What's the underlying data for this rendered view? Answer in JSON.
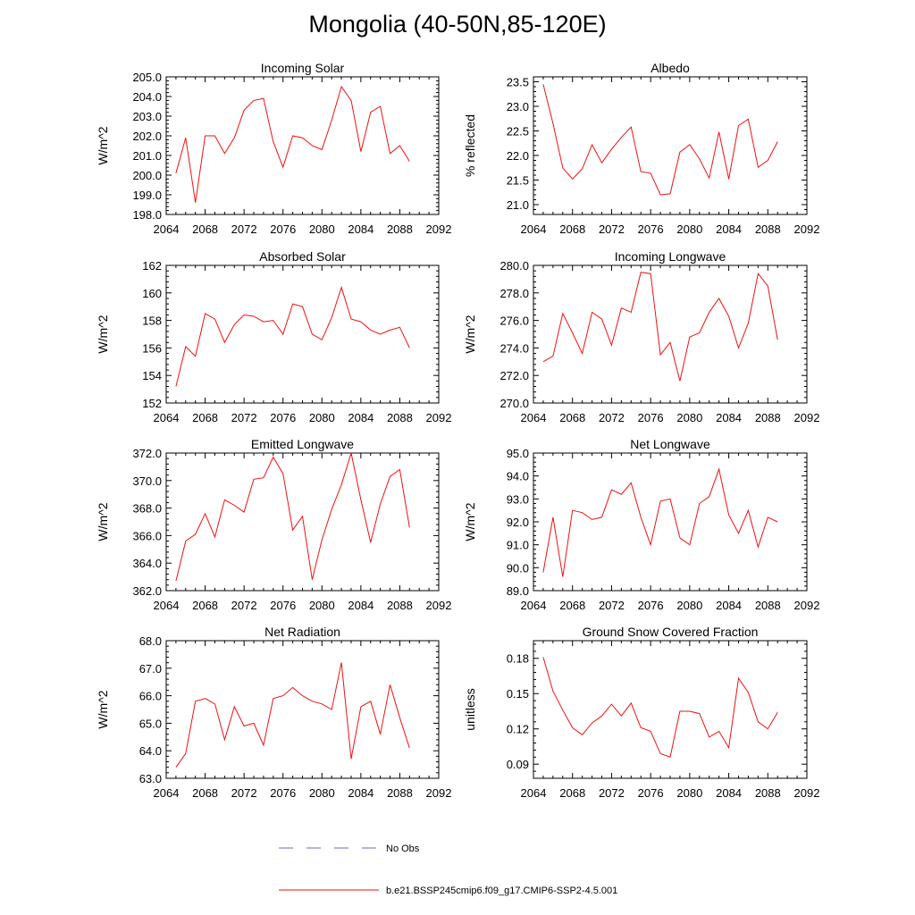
{
  "title": "Mongolia (40-50N,85-120E)",
  "legend": {
    "entries": [
      {
        "label": "No Obs",
        "color": "#6666cc",
        "style": "dashed"
      },
      {
        "label": "b.e21.BSSP245cmip6.f09_g17.CMIP6-SSP2-4.5.001",
        "color": "#ee1111",
        "style": "solid"
      }
    ]
  },
  "colors": {
    "series": "#ee1111",
    "axis": "#000000"
  },
  "chart_data": [
    {
      "type": "line",
      "title": "Incoming Solar",
      "ylabel": "W/m^2",
      "xlim": [
        2064,
        2092
      ],
      "ylim": [
        198,
        205
      ],
      "xticks": [
        2064,
        2068,
        2072,
        2076,
        2080,
        2084,
        2088,
        2092
      ],
      "xticklabels": [
        "2064",
        "2068",
        "2072",
        "2076",
        "2080",
        "2084",
        "2088",
        "2092"
      ],
      "yticks": [
        198,
        199,
        200,
        201,
        202,
        203,
        204,
        205
      ],
      "yticklabels": [
        "198.0",
        "199.0",
        "200.0",
        "201.0",
        "202.0",
        "203.0",
        "204.0",
        "205.0"
      ],
      "x": [
        2065,
        2066,
        2067,
        2068,
        2069,
        2070,
        2071,
        2072,
        2073,
        2074,
        2075,
        2076,
        2077,
        2078,
        2079,
        2080,
        2081,
        2082,
        2083,
        2084,
        2085,
        2086,
        2087,
        2088,
        2089
      ],
      "series": [
        {
          "values": [
            200.1,
            201.9,
            198.6,
            202.0,
            202.0,
            201.1,
            201.9,
            203.3,
            203.8,
            203.9,
            201.7,
            200.4,
            202.0,
            201.9,
            201.5,
            201.3,
            202.8,
            204.5,
            203.8,
            201.2,
            203.2,
            203.5,
            201.1,
            201.5,
            200.7
          ]
        }
      ]
    },
    {
      "type": "line",
      "title": "Albedo",
      "ylabel": "% reflected",
      "xlim": [
        2064,
        2092
      ],
      "ylim": [
        20.8,
        23.6
      ],
      "xticks": [
        2064,
        2068,
        2072,
        2076,
        2080,
        2084,
        2088,
        2092
      ],
      "xticklabels": [
        "2064",
        "2068",
        "2072",
        "2076",
        "2080",
        "2084",
        "2088",
        "2092"
      ],
      "yticks": [
        21.0,
        21.5,
        22.0,
        22.5,
        23.0,
        23.5
      ],
      "yticklabels": [
        "21.0",
        "21.5",
        "22.0",
        "22.5",
        "23.0",
        "23.5"
      ],
      "x": [
        2065,
        2066,
        2067,
        2068,
        2069,
        2070,
        2071,
        2072,
        2073,
        2074,
        2075,
        2076,
        2077,
        2078,
        2079,
        2080,
        2081,
        2082,
        2083,
        2084,
        2085,
        2086,
        2087,
        2088,
        2089
      ],
      "series": [
        {
          "values": [
            23.45,
            22.65,
            21.75,
            21.52,
            21.73,
            22.22,
            21.85,
            22.13,
            22.37,
            22.58,
            21.67,
            21.64,
            21.2,
            21.22,
            22.07,
            22.22,
            21.93,
            21.54,
            22.48,
            21.52,
            22.61,
            22.74,
            21.76,
            21.9,
            22.28
          ]
        }
      ]
    },
    {
      "type": "line",
      "title": "Absorbed Solar",
      "ylabel": "W/m^2",
      "xlim": [
        2064,
        2092
      ],
      "ylim": [
        152,
        162
      ],
      "xticks": [
        2064,
        2068,
        2072,
        2076,
        2080,
        2084,
        2088,
        2092
      ],
      "xticklabels": [
        "2064",
        "2068",
        "2072",
        "2076",
        "2080",
        "2084",
        "2088",
        "2092"
      ],
      "yticks": [
        152,
        154,
        156,
        158,
        160,
        162
      ],
      "yticklabels": [
        "152",
        "154",
        "156",
        "158",
        "160",
        "162"
      ],
      "x": [
        2065,
        2066,
        2067,
        2068,
        2069,
        2070,
        2071,
        2072,
        2073,
        2074,
        2075,
        2076,
        2077,
        2078,
        2079,
        2080,
        2081,
        2082,
        2083,
        2084,
        2085,
        2086,
        2087,
        2088,
        2089
      ],
      "series": [
        {
          "values": [
            153.2,
            156.1,
            155.4,
            158.5,
            158.1,
            156.4,
            157.7,
            158.4,
            158.3,
            157.9,
            158.0,
            157.0,
            159.2,
            159.0,
            157.0,
            156.6,
            158.2,
            160.4,
            158.1,
            157.9,
            157.3,
            157.0,
            157.3,
            157.5,
            156.0
          ]
        }
      ]
    },
    {
      "type": "line",
      "title": "Incoming Longwave",
      "ylabel": "W/m^2",
      "xlim": [
        2064,
        2092
      ],
      "ylim": [
        270,
        280
      ],
      "xticks": [
        2064,
        2068,
        2072,
        2076,
        2080,
        2084,
        2088,
        2092
      ],
      "xticklabels": [
        "2064",
        "2068",
        "2072",
        "2076",
        "2080",
        "2084",
        "2088",
        "2092"
      ],
      "yticks": [
        270,
        272,
        274,
        276,
        278,
        280
      ],
      "yticklabels": [
        "270.0",
        "272.0",
        "274.0",
        "276.0",
        "278.0",
        "280.0"
      ],
      "x": [
        2065,
        2066,
        2067,
        2068,
        2069,
        2070,
        2071,
        2072,
        2073,
        2074,
        2075,
        2076,
        2077,
        2078,
        2079,
        2080,
        2081,
        2082,
        2083,
        2084,
        2085,
        2086,
        2087,
        2088,
        2089
      ],
      "series": [
        {
          "values": [
            273.0,
            273.4,
            276.5,
            275.1,
            273.6,
            276.6,
            276.1,
            274.2,
            276.9,
            276.6,
            279.5,
            279.4,
            273.5,
            274.4,
            271.6,
            274.8,
            275.1,
            276.6,
            277.6,
            276.3,
            274.0,
            275.8,
            279.4,
            278.5,
            274.6
          ]
        }
      ]
    },
    {
      "type": "line",
      "title": "Emitted Longwave",
      "ylabel": "W/m^2",
      "xlim": [
        2064,
        2092
      ],
      "ylim": [
        362,
        372
      ],
      "xticks": [
        2064,
        2068,
        2072,
        2076,
        2080,
        2084,
        2088,
        2092
      ],
      "xticklabels": [
        "2064",
        "2068",
        "2072",
        "2076",
        "2080",
        "2084",
        "2088",
        "2092"
      ],
      "yticks": [
        362,
        364,
        366,
        368,
        370,
        372
      ],
      "yticklabels": [
        "362.0",
        "364.0",
        "366.0",
        "368.0",
        "370.0",
        "372.0"
      ],
      "x": [
        2065,
        2066,
        2067,
        2068,
        2069,
        2070,
        2071,
        2072,
        2073,
        2074,
        2075,
        2076,
        2077,
        2078,
        2079,
        2080,
        2081,
        2082,
        2083,
        2084,
        2085,
        2086,
        2087,
        2088,
        2089
      ],
      "series": [
        {
          "values": [
            362.7,
            365.6,
            366.1,
            367.6,
            365.9,
            368.6,
            368.2,
            367.7,
            370.1,
            370.2,
            371.7,
            370.5,
            366.4,
            367.4,
            362.8,
            365.7,
            367.9,
            369.7,
            372.0,
            368.6,
            365.5,
            368.3,
            370.3,
            370.8,
            366.6
          ]
        }
      ]
    },
    {
      "type": "line",
      "title": "Net Longwave",
      "ylabel": "W/m^2",
      "xlim": [
        2064,
        2092
      ],
      "ylim": [
        89,
        95
      ],
      "xticks": [
        2064,
        2068,
        2072,
        2076,
        2080,
        2084,
        2088,
        2092
      ],
      "xticklabels": [
        "2064",
        "2068",
        "2072",
        "2076",
        "2080",
        "2084",
        "2088",
        "2092"
      ],
      "yticks": [
        89,
        90,
        91,
        92,
        93,
        94,
        95
      ],
      "yticklabels": [
        "89.0",
        "90.0",
        "91.0",
        "92.0",
        "93.0",
        "94.0",
        "95.0"
      ],
      "x": [
        2065,
        2066,
        2067,
        2068,
        2069,
        2070,
        2071,
        2072,
        2073,
        2074,
        2075,
        2076,
        2077,
        2078,
        2079,
        2080,
        2081,
        2082,
        2083,
        2084,
        2085,
        2086,
        2087,
        2088,
        2089
      ],
      "series": [
        {
          "values": [
            89.8,
            92.2,
            89.6,
            92.5,
            92.4,
            92.1,
            92.2,
            93.4,
            93.2,
            93.7,
            92.2,
            91.0,
            92.9,
            93.0,
            91.3,
            91.0,
            92.8,
            93.1,
            94.3,
            92.3,
            91.5,
            92.5,
            90.9,
            92.2,
            92.0
          ]
        }
      ]
    },
    {
      "type": "line",
      "title": "Net Radiation",
      "ylabel": "W/m^2",
      "xlim": [
        2064,
        2092
      ],
      "ylim": [
        63,
        68
      ],
      "xticks": [
        2064,
        2068,
        2072,
        2076,
        2080,
        2084,
        2088,
        2092
      ],
      "xticklabels": [
        "2064",
        "2068",
        "2072",
        "2076",
        "2080",
        "2084",
        "2088",
        "2092"
      ],
      "yticks": [
        63,
        64,
        65,
        66,
        67,
        68
      ],
      "yticklabels": [
        "63.0",
        "64.0",
        "65.0",
        "66.0",
        "67.0",
        "68.0"
      ],
      "x": [
        2065,
        2066,
        2067,
        2068,
        2069,
        2070,
        2071,
        2072,
        2073,
        2074,
        2075,
        2076,
        2077,
        2078,
        2079,
        2080,
        2081,
        2082,
        2083,
        2084,
        2085,
        2086,
        2087,
        2088,
        2089
      ],
      "series": [
        {
          "values": [
            63.4,
            63.9,
            65.8,
            65.9,
            65.7,
            64.4,
            65.6,
            64.9,
            65.0,
            64.2,
            65.9,
            66.0,
            66.3,
            66.0,
            65.8,
            65.7,
            65.5,
            67.2,
            63.7,
            65.6,
            65.8,
            64.6,
            66.4,
            65.2,
            64.1
          ]
        }
      ]
    },
    {
      "type": "line",
      "title": "Ground Snow Covered Fraction",
      "ylabel": "unitless",
      "xlim": [
        2064,
        2092
      ],
      "ylim": [
        0.078,
        0.195
      ],
      "xticks": [
        2064,
        2068,
        2072,
        2076,
        2080,
        2084,
        2088,
        2092
      ],
      "xticklabels": [
        "2064",
        "2068",
        "2072",
        "2076",
        "2080",
        "2084",
        "2088",
        "2092"
      ],
      "yticks": [
        0.09,
        0.12,
        0.15,
        0.18
      ],
      "yticklabels": [
        "0.09",
        "0.12",
        "0.15",
        "0.18"
      ],
      "x": [
        2065,
        2066,
        2067,
        2068,
        2069,
        2070,
        2071,
        2072,
        2073,
        2074,
        2075,
        2076,
        2077,
        2078,
        2079,
        2080,
        2081,
        2082,
        2083,
        2084,
        2085,
        2086,
        2087,
        2088,
        2089
      ],
      "series": [
        {
          "values": [
            0.181,
            0.152,
            0.136,
            0.121,
            0.115,
            0.125,
            0.131,
            0.141,
            0.131,
            0.142,
            0.121,
            0.118,
            0.099,
            0.096,
            0.135,
            0.135,
            0.133,
            0.113,
            0.118,
            0.104,
            0.163,
            0.151,
            0.126,
            0.12,
            0.134
          ]
        }
      ]
    }
  ]
}
